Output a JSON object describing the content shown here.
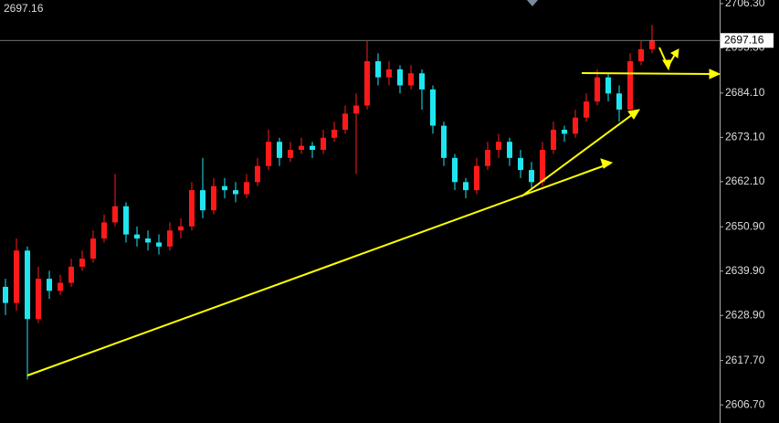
{
  "chart_data": {
    "type": "candlestick",
    "last_price": 2697.16,
    "up_color": "#ff1a1a",
    "down_color": "#1ee6f0",
    "grid": false,
    "ylim": [
      2602.2,
      2707.2
    ],
    "yticks": [
      {
        "value": 2706.3,
        "label": "2706.30"
      },
      {
        "value": 2695.3,
        "label": "2695.30"
      },
      {
        "value": 2684.1,
        "label": "2684.10"
      },
      {
        "value": 2673.1,
        "label": "2673.10"
      },
      {
        "value": 2662.1,
        "label": "2662.10"
      },
      {
        "value": 2650.9,
        "label": "2650.90"
      },
      {
        "value": 2639.9,
        "label": "2639.90"
      },
      {
        "value": 2628.9,
        "label": "2628.90"
      },
      {
        "value": 2617.7,
        "label": "2617.70"
      },
      {
        "value": 2606.7,
        "label": "2606.70"
      }
    ],
    "open": [
      2636,
      2632,
      2645,
      2628,
      2638,
      2635,
      2637,
      2641,
      2643,
      2648,
      2652,
      2656,
      2649,
      2648,
      2647,
      2646,
      2650,
      2651,
      2660,
      2655,
      2661,
      2660,
      2659,
      2662,
      2666,
      2672,
      2668,
      2670,
      2671,
      2670,
      2673,
      2675,
      2679,
      2681,
      2692,
      2688,
      2690,
      2686,
      2689,
      2685,
      2676,
      2668,
      2662,
      2660,
      2666,
      2670,
      2672,
      2668,
      2665,
      2662,
      2670,
      2675,
      2674,
      2678,
      2682,
      2688,
      2684,
      2680,
      2692,
      2695
    ],
    "high": [
      2638,
      2648,
      2646,
      2641,
      2640,
      2639,
      2643,
      2645,
      2650,
      2654,
      2664,
      2657,
      2651,
      2650,
      2649,
      2652,
      2653,
      2662,
      2668,
      2663,
      2663,
      2662,
      2664,
      2668,
      2675,
      2673,
      2672,
      2673,
      2672,
      2675,
      2677,
      2681,
      2684,
      2697,
      2694,
      2692,
      2691,
      2691,
      2690,
      2686,
      2677,
      2669,
      2663,
      2668,
      2672,
      2674,
      2673,
      2670,
      2667,
      2672,
      2677,
      2676,
      2680,
      2684,
      2690,
      2689,
      2686,
      2694,
      2697,
      2701
    ],
    "low": [
      2629,
      2630,
      2613,
      2627,
      2633,
      2634,
      2636,
      2640,
      2642,
      2647,
      2651,
      2647,
      2646,
      2645,
      2644,
      2645,
      2648,
      2650,
      2653,
      2654,
      2658,
      2657,
      2658,
      2661,
      2665,
      2666,
      2667,
      2669,
      2668,
      2669,
      2672,
      2674,
      2664,
      2680,
      2686,
      2686,
      2684,
      2685,
      2680,
      2674,
      2666,
      2660,
      2658,
      2659,
      2665,
      2668,
      2666,
      2663,
      2660,
      2661,
      2669,
      2672,
      2673,
      2677,
      2681,
      2682,
      2677,
      2679,
      2691,
      2694
    ],
    "close": [
      2632,
      2645,
      2628,
      2638,
      2635,
      2637,
      2641,
      2643,
      2648,
      2652,
      2656,
      2649,
      2648,
      2647,
      2646,
      2650,
      2651,
      2660,
      2655,
      2661,
      2660,
      2659,
      2662,
      2666,
      2672,
      2668,
      2670,
      2671,
      2670,
      2673,
      2675,
      2679,
      2681,
      2692,
      2688,
      2690,
      2686,
      2689,
      2685,
      2676,
      2668,
      2662,
      2660,
      2666,
      2670,
      2672,
      2668,
      2665,
      2662,
      2670,
      2675,
      2674,
      2678,
      2682,
      2688,
      2684,
      2680,
      2692,
      2695,
      2697.16
    ]
  }
}
